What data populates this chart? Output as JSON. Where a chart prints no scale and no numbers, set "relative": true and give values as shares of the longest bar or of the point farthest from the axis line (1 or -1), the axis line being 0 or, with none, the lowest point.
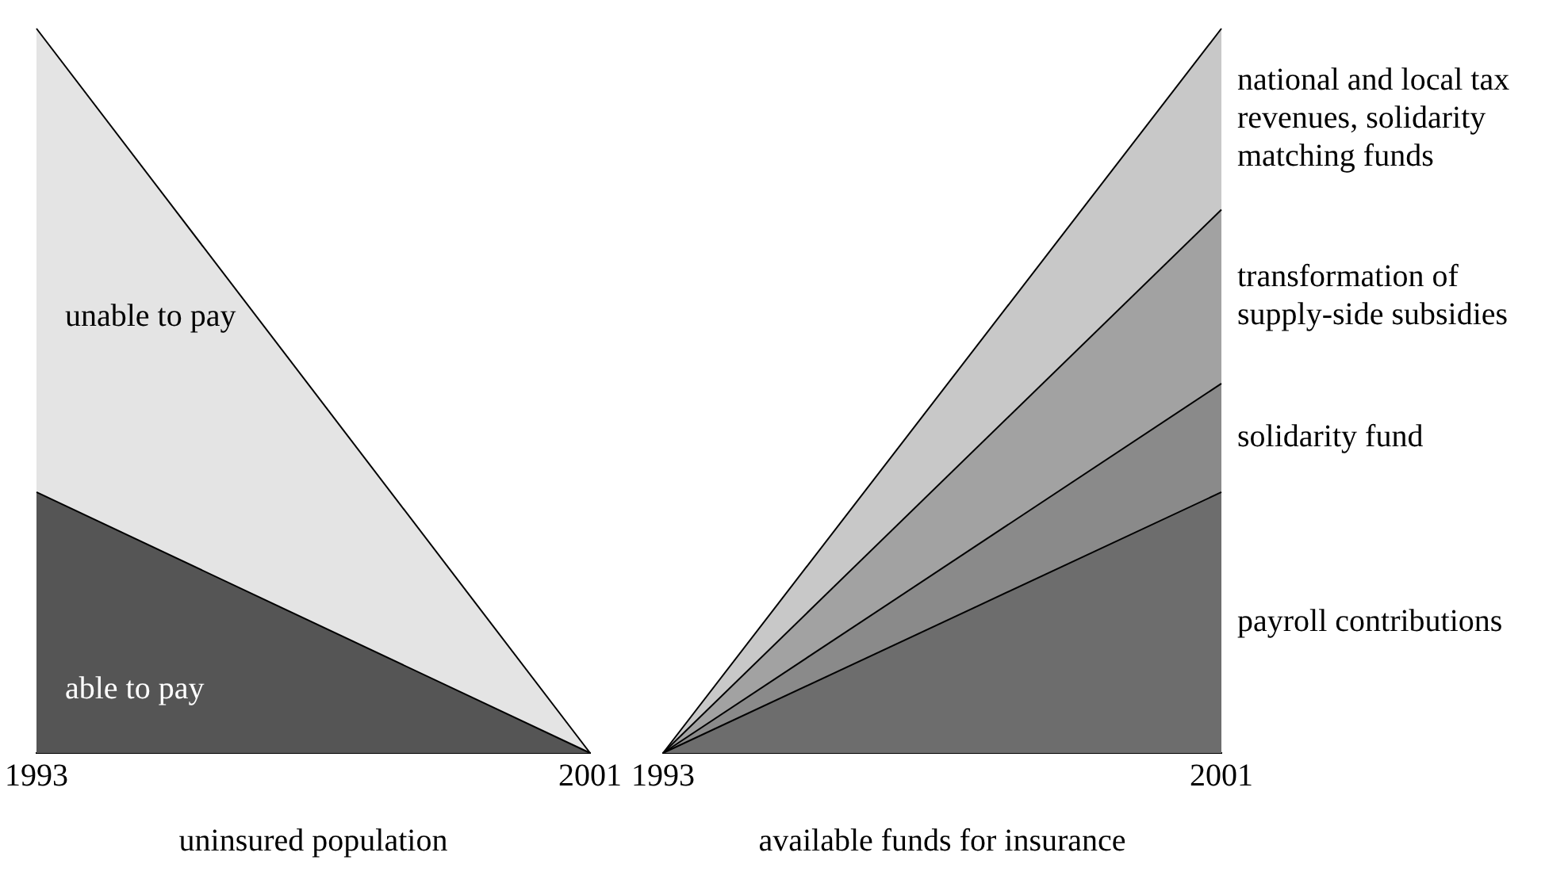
{
  "chart_data": [
    {
      "type": "area",
      "stacked": true,
      "relative": true,
      "xlabel": "uninsured population",
      "categories": [
        "1993",
        "2001"
      ],
      "grid": false,
      "legend": false,
      "series": [
        {
          "name": "able to pay",
          "color": "#555555",
          "values": [
            0.36,
            0
          ]
        },
        {
          "name": "unable to pay",
          "color": "#e4e4e4",
          "values": [
            0.64,
            0
          ]
        }
      ]
    },
    {
      "type": "area",
      "stacked": true,
      "relative": true,
      "xlabel": "available funds for insurance",
      "categories": [
        "1993",
        "2001"
      ],
      "grid": false,
      "legend": false,
      "series": [
        {
          "name": "payroll contributions",
          "color": "#6d6d6d",
          "values": [
            0,
            0.36
          ]
        },
        {
          "name": "solidarity fund",
          "color": "#8a8a8a",
          "values": [
            0,
            0.15
          ]
        },
        {
          "name": "transformation of supply-side subsidies",
          "color": "#a2a2a2",
          "values": [
            0,
            0.24
          ]
        },
        {
          "name": "national and local tax revenues, solidarity matching funds",
          "color": "#c8c8c8",
          "values": [
            0,
            0.25
          ]
        }
      ]
    }
  ]
}
